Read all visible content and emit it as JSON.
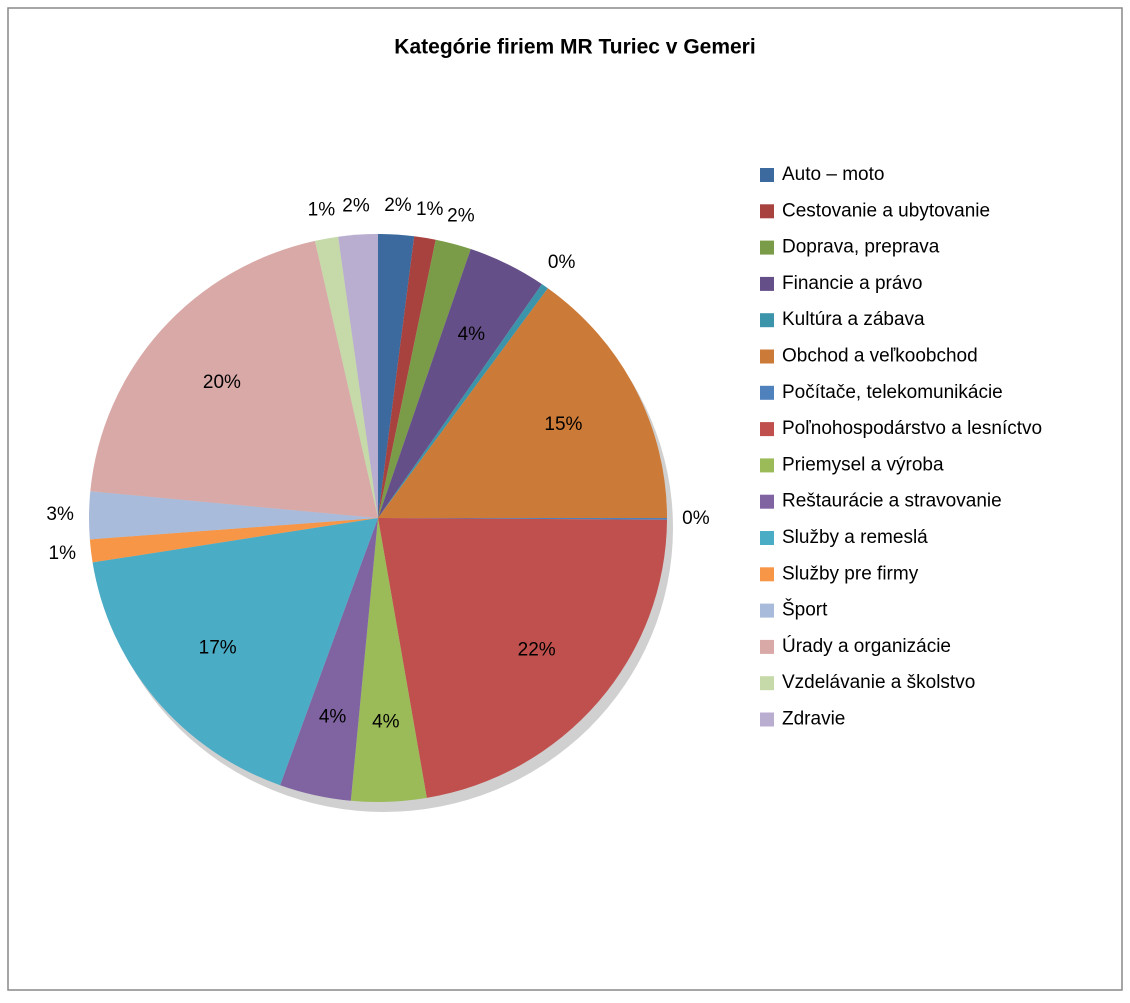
{
  "chart_data": {
    "type": "pie",
    "title": "Kategórie firiem MR Turiec v Gemeri",
    "categories": [
      "Auto – moto",
      "Cestovanie a ubytovanie",
      "Doprava, preprava",
      "Financie a právo",
      "Kultúra a zábava",
      "Obchod a veľkoobchod",
      "Počítače, telekomunikácie",
      "Poľnohospodárstvo a lesníctvo",
      "Priemysel a výroba",
      "Reštaurácie a stravovanie",
      "Služby a remeslá",
      "Služby pre firmy",
      "Šport",
      "Úrady a organizácie",
      "Vzdelávanie a školstvo",
      "Zdravie"
    ],
    "values": [
      2.0,
      1.2,
      2.0,
      4.4,
      0.4,
      15.0,
      0.1,
      22.2,
      4.2,
      4.0,
      17.0,
      1.3,
      2.7,
      20.0,
      1.3,
      2.2
    ],
    "value_labels": [
      "2%",
      "1%",
      "2%",
      "4%",
      "0%",
      "15%",
      "0%",
      "22%",
      "4%",
      "4%",
      "17%",
      "1%",
      "3%",
      "20%",
      "1%",
      "2%"
    ],
    "colors": [
      "#3d6a9e",
      "#a8423f",
      "#7a9c48",
      "#654f88",
      "#3c94ab",
      "#cc7a37",
      "#4f81bd",
      "#c0504d",
      "#9bbb59",
      "#8064a2",
      "#4bacc6",
      "#f79646",
      "#a9bbdb",
      "#d9a9a7",
      "#c6d9a9",
      "#b9add0"
    ],
    "legend": "right"
  }
}
